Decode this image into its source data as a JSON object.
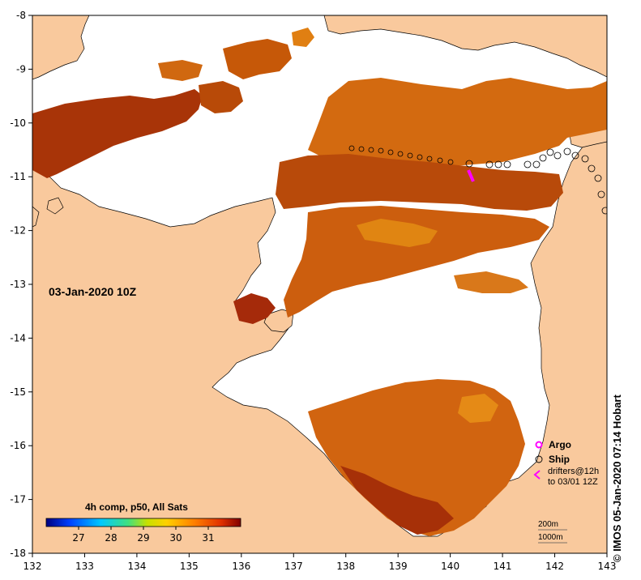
{
  "map": {
    "timestamp_label": "03-Jan-2020 10Z",
    "credit": "© IMOS 05-Jan-2020 07:14 Hobart",
    "x_ticks": [
      "132",
      "133",
      "134",
      "135",
      "136",
      "137",
      "138",
      "139",
      "140",
      "141",
      "142",
      "143"
    ],
    "y_ticks": [
      "-8",
      "-9",
      "-10",
      "-11",
      "-12",
      "-13",
      "-14",
      "-15",
      "-16",
      "-17",
      "-18"
    ],
    "lon_range": [
      132,
      143
    ],
    "lat_range": [
      -18,
      -8
    ]
  },
  "colorbar": {
    "title": "4h comp, p50, All Sats",
    "ticks": [
      "27",
      "28",
      "29",
      "30",
      "31"
    ],
    "range": [
      26,
      32
    ]
  },
  "legend": {
    "argo_label": "Argo",
    "ship_label": "Ship",
    "drifters_line1": "drifters@12h",
    "drifters_line2": "to 03/01 12Z",
    "isobath_200": "200m",
    "isobath_1000": "1000m"
  },
  "colors": {
    "land": "#f9c99d",
    "no_data": "#ffffff",
    "sst_hot": "#a52a00",
    "sst_mid": "#cc5a05",
    "sst_warm": "#e07c10",
    "argo": "#ff00ff",
    "drifter": "#ff00ff"
  }
}
